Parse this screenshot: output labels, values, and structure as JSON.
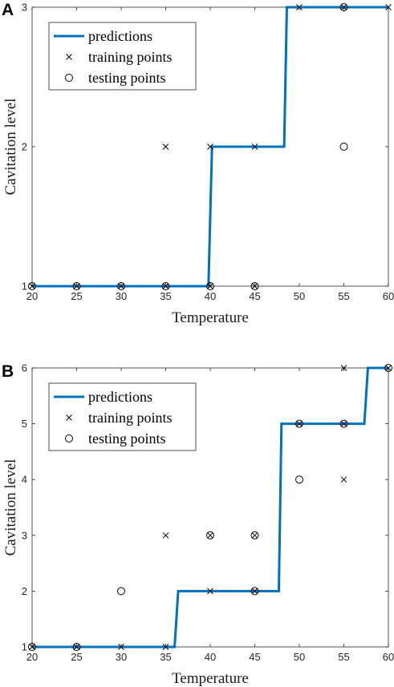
{
  "colors": {
    "prediction_line": "#0072BD",
    "markers": "#000000",
    "axes": "#262626"
  },
  "chart_data": [
    {
      "panel": "A",
      "type": "line",
      "xlabel": "Temperature",
      "ylabel": "Cavitation level",
      "xlim": [
        20,
        60
      ],
      "ylim": [
        1,
        3
      ],
      "xticks": [
        "20",
        "25",
        "30",
        "35",
        "40",
        "45",
        "50",
        "55",
        "60"
      ],
      "yticks": [
        "1",
        "2",
        "3"
      ],
      "grid": false,
      "legend_position": "top-left",
      "legend": [
        "predictions",
        "training points",
        "testing points"
      ],
      "series": [
        {
          "name": "predictions",
          "kind": "step-line",
          "points": [
            [
              20,
              1
            ],
            [
              39.8,
              1
            ],
            [
              40.2,
              2
            ],
            [
              48.3,
              2
            ],
            [
              48.6,
              3
            ],
            [
              60,
              3
            ]
          ]
        },
        {
          "name": "training points",
          "kind": "marker-x",
          "points": [
            [
              20,
              1
            ],
            [
              25,
              1
            ],
            [
              30,
              1
            ],
            [
              35,
              1
            ],
            [
              35,
              2
            ],
            [
              40,
              1
            ],
            [
              40,
              2
            ],
            [
              45,
              1
            ],
            [
              45,
              2
            ],
            [
              50,
              3
            ],
            [
              55,
              3
            ],
            [
              60,
              3
            ]
          ]
        },
        {
          "name": "testing points",
          "kind": "marker-o",
          "points": [
            [
              20,
              1
            ],
            [
              25,
              1
            ],
            [
              30,
              1
            ],
            [
              35,
              1
            ],
            [
              40,
              1
            ],
            [
              45,
              1
            ],
            [
              55,
              3
            ],
            [
              55,
              2
            ]
          ]
        }
      ]
    },
    {
      "panel": "B",
      "type": "line",
      "xlabel": "Temperature",
      "ylabel": "Cavitation level",
      "xlim": [
        20,
        60
      ],
      "ylim": [
        1,
        6
      ],
      "xticks": [
        "20",
        "25",
        "30",
        "35",
        "40",
        "45",
        "50",
        "55",
        "60"
      ],
      "yticks": [
        "1",
        "2",
        "3",
        "4",
        "5",
        "6"
      ],
      "grid": false,
      "legend_position": "top-left",
      "legend": [
        "predictions",
        "training points",
        "testing points"
      ],
      "series": [
        {
          "name": "predictions",
          "kind": "step-line",
          "points": [
            [
              20,
              1
            ],
            [
              36,
              1
            ],
            [
              36.4,
              2
            ],
            [
              47.7,
              2
            ],
            [
              48,
              5
            ],
            [
              57.3,
              5
            ],
            [
              57.7,
              6
            ],
            [
              60,
              6
            ]
          ]
        },
        {
          "name": "training points",
          "kind": "marker-x",
          "points": [
            [
              20,
              1
            ],
            [
              25,
              1
            ],
            [
              30,
              1
            ],
            [
              35,
              1
            ],
            [
              35,
              3
            ],
            [
              40,
              2
            ],
            [
              40,
              3
            ],
            [
              45,
              2
            ],
            [
              45,
              3
            ],
            [
              50,
              5
            ],
            [
              55,
              5
            ],
            [
              55,
              4
            ],
            [
              55,
              6
            ],
            [
              60,
              6
            ]
          ]
        },
        {
          "name": "testing points",
          "kind": "marker-o",
          "points": [
            [
              20,
              1
            ],
            [
              25,
              1
            ],
            [
              30,
              2
            ],
            [
              40,
              3
            ],
            [
              45,
              3
            ],
            [
              45,
              2
            ],
            [
              50,
              5
            ],
            [
              50,
              4
            ],
            [
              55,
              5
            ],
            [
              60,
              6
            ]
          ]
        }
      ]
    }
  ]
}
